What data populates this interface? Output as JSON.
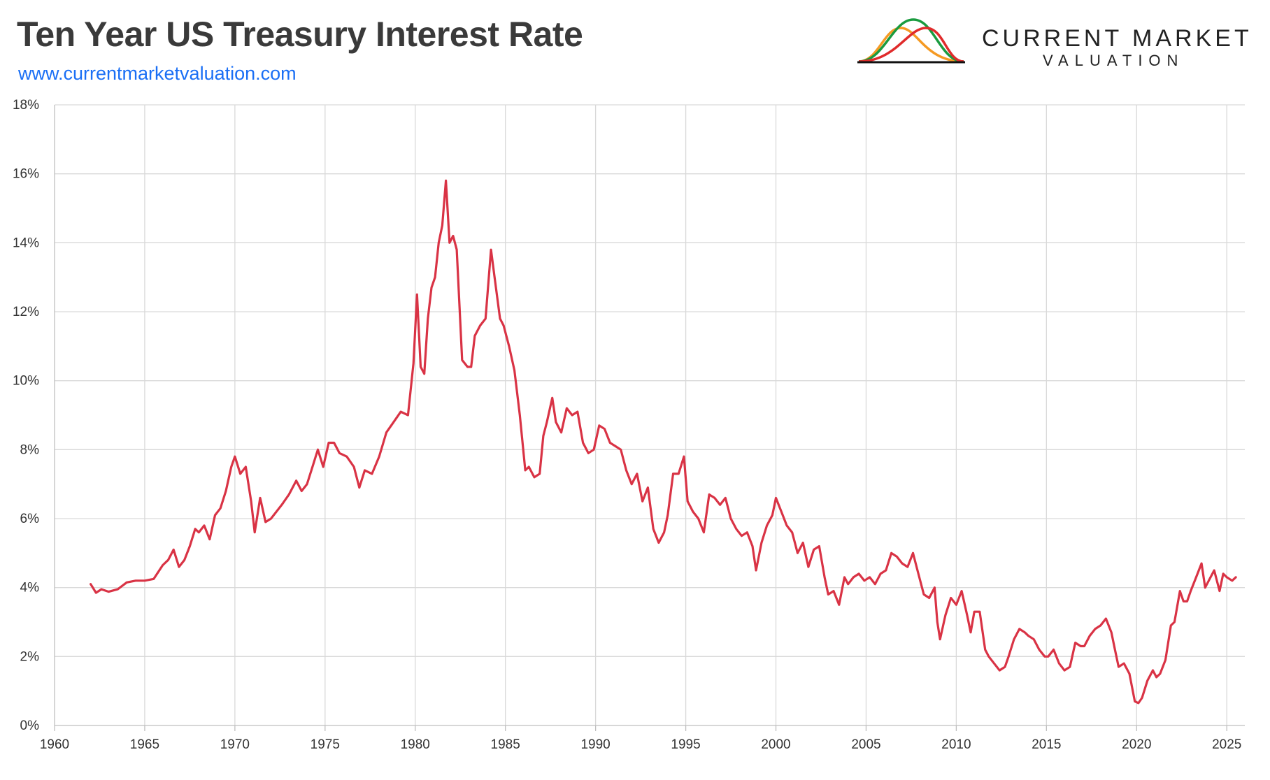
{
  "header": {
    "title": "Ten Year US Treasury Interest Rate",
    "url": "www.currentmarketvaluation.com"
  },
  "brand": {
    "name": "CURRENT MARKET",
    "sub": "VALUATION",
    "logo_icon": "bell-curves-logo",
    "logo_colors": [
      "#f59a23",
      "#1a9b3f",
      "#e02b2b",
      "#111111"
    ]
  },
  "chart_data": {
    "type": "line",
    "title": "",
    "xlabel": "",
    "ylabel": "",
    "xlim": [
      1960,
      2026
    ],
    "ylim": [
      0,
      18
    ],
    "x_ticks": [
      1960,
      1965,
      1970,
      1975,
      1980,
      1985,
      1990,
      1995,
      2000,
      2005,
      2010,
      2015,
      2020,
      2025
    ],
    "x_tick_labels": [
      "1960",
      "1965",
      "1970",
      "1975",
      "1980",
      "1985",
      "1990",
      "1995",
      "2000",
      "2005",
      "2010",
      "2015",
      "2020",
      "2025"
    ],
    "y_ticks": [
      0,
      2,
      4,
      6,
      8,
      10,
      12,
      14,
      16,
      18
    ],
    "y_tick_labels": [
      "0%",
      "2%",
      "4%",
      "6%",
      "8%",
      "10%",
      "12%",
      "14%",
      "16%",
      "18%"
    ],
    "grid": true,
    "legend": "none",
    "line_color": "#d93345",
    "series": [
      {
        "x": [
          1962.0,
          1962.3,
          1962.6,
          1963.0,
          1963.5,
          1964.0,
          1964.5,
          1965.0,
          1965.5,
          1966.0,
          1966.3,
          1966.6,
          1966.9,
          1967.2,
          1967.5,
          1967.8,
          1968.0,
          1968.3,
          1968.6,
          1968.9,
          1969.2,
          1969.5,
          1969.8,
          1970.0,
          1970.3,
          1970.6,
          1970.9,
          1971.1,
          1971.4,
          1971.7,
          1972.0,
          1972.3,
          1972.6,
          1973.0,
          1973.4,
          1973.7,
          1974.0,
          1974.3,
          1974.6,
          1974.9,
          1975.2,
          1975.5,
          1975.8,
          1976.2,
          1976.6,
          1976.9,
          1977.2,
          1977.6,
          1978.0,
          1978.4,
          1978.8,
          1979.2,
          1979.6,
          1979.9,
          1980.1,
          1980.3,
          1980.5,
          1980.7,
          1980.9,
          1981.1,
          1981.3,
          1981.5,
          1981.7,
          1981.9,
          1982.1,
          1982.3,
          1982.6,
          1982.9,
          1983.1,
          1983.3,
          1983.6,
          1983.9,
          1984.2,
          1984.4,
          1984.7,
          1984.9,
          1985.2,
          1985.5,
          1985.8,
          1986.1,
          1986.3,
          1986.6,
          1986.9,
          1987.1,
          1987.3,
          1987.6,
          1987.8,
          1988.1,
          1988.4,
          1988.7,
          1989.0,
          1989.3,
          1989.6,
          1989.9,
          1990.2,
          1990.5,
          1990.8,
          1991.1,
          1991.4,
          1991.7,
          1992.0,
          1992.3,
          1992.6,
          1992.9,
          1993.2,
          1993.5,
          1993.8,
          1994.0,
          1994.3,
          1994.6,
          1994.9,
          1995.1,
          1995.4,
          1995.7,
          1996.0,
          1996.3,
          1996.6,
          1996.9,
          1997.2,
          1997.5,
          1997.8,
          1998.1,
          1998.4,
          1998.7,
          1998.9,
          1999.2,
          1999.5,
          1999.8,
          2000.0,
          2000.3,
          2000.6,
          2000.9,
          2001.2,
          2001.5,
          2001.8,
          2002.1,
          2002.4,
          2002.7,
          2002.9,
          2003.2,
          2003.5,
          2003.8,
          2004.0,
          2004.3,
          2004.6,
          2004.9,
          2005.2,
          2005.5,
          2005.8,
          2006.1,
          2006.4,
          2006.7,
          2007.0,
          2007.3,
          2007.6,
          2007.9,
          2008.2,
          2008.5,
          2008.8,
          2008.95,
          2009.1,
          2009.4,
          2009.7,
          2010.0,
          2010.3,
          2010.6,
          2010.8,
          2011.0,
          2011.3,
          2011.6,
          2011.8,
          2012.1,
          2012.4,
          2012.7,
          2012.9,
          2013.2,
          2013.5,
          2013.8,
          2014.0,
          2014.3,
          2014.6,
          2014.9,
          2015.1,
          2015.4,
          2015.7,
          2016.0,
          2016.3,
          2016.6,
          2016.9,
          2017.1,
          2017.4,
          2017.7,
          2018.0,
          2018.3,
          2018.6,
          2018.8,
          2019.0,
          2019.3,
          2019.6,
          2019.9,
          2020.1,
          2020.3,
          2020.6,
          2020.9,
          2021.1,
          2021.3,
          2021.6,
          2021.9,
          2022.1,
          2022.4,
          2022.6,
          2022.8,
          2023.0,
          2023.3,
          2023.6,
          2023.8,
          2024.0,
          2024.3,
          2024.6,
          2024.8,
          2025.0,
          2025.3,
          2025.5
        ],
        "values": [
          4.1,
          3.85,
          3.95,
          3.88,
          3.95,
          4.15,
          4.2,
          4.2,
          4.25,
          4.65,
          4.8,
          5.1,
          4.6,
          4.8,
          5.2,
          5.7,
          5.6,
          5.8,
          5.4,
          6.1,
          6.3,
          6.8,
          7.5,
          7.8,
          7.3,
          7.5,
          6.5,
          5.6,
          6.6,
          5.9,
          6.0,
          6.2,
          6.4,
          6.7,
          7.1,
          6.8,
          7.0,
          7.5,
          8.0,
          7.5,
          8.2,
          8.2,
          7.9,
          7.8,
          7.5,
          6.9,
          7.4,
          7.3,
          7.8,
          8.5,
          8.8,
          9.1,
          9.0,
          10.5,
          12.5,
          10.4,
          10.2,
          11.8,
          12.7,
          13.0,
          14.0,
          14.5,
          15.8,
          14.0,
          14.2,
          13.8,
          10.6,
          10.4,
          10.4,
          11.3,
          11.6,
          11.8,
          13.8,
          13.0,
          11.8,
          11.6,
          11.0,
          10.3,
          9.0,
          7.4,
          7.5,
          7.2,
          7.3,
          8.4,
          8.8,
          9.5,
          8.8,
          8.5,
          9.2,
          9.0,
          9.1,
          8.2,
          7.9,
          8.0,
          8.7,
          8.6,
          8.2,
          8.1,
          8.0,
          7.4,
          7.0,
          7.3,
          6.5,
          6.9,
          5.7,
          5.3,
          5.6,
          6.1,
          7.3,
          7.3,
          7.8,
          6.5,
          6.2,
          6.0,
          5.6,
          6.7,
          6.6,
          6.4,
          6.6,
          6.0,
          5.7,
          5.5,
          5.6,
          5.2,
          4.5,
          5.3,
          5.8,
          6.1,
          6.6,
          6.2,
          5.8,
          5.6,
          5.0,
          5.3,
          4.6,
          5.1,
          5.2,
          4.3,
          3.8,
          3.9,
          3.5,
          4.3,
          4.1,
          4.3,
          4.4,
          4.2,
          4.3,
          4.1,
          4.4,
          4.5,
          5.0,
          4.9,
          4.7,
          4.6,
          5.0,
          4.4,
          3.8,
          3.7,
          4.0,
          3.0,
          2.5,
          3.2,
          3.7,
          3.5,
          3.9,
          3.2,
          2.7,
          3.3,
          3.3,
          2.2,
          2.0,
          1.8,
          1.6,
          1.7,
          2.0,
          2.5,
          2.8,
          2.7,
          2.6,
          2.5,
          2.2,
          2.0,
          2.0,
          2.2,
          1.8,
          1.6,
          1.7,
          2.4,
          2.3,
          2.3,
          2.6,
          2.8,
          2.9,
          3.1,
          2.7,
          2.2,
          1.7,
          1.8,
          1.5,
          0.7,
          0.65,
          0.8,
          1.3,
          1.6,
          1.4,
          1.5,
          1.9,
          2.9,
          3.0,
          3.9,
          3.6,
          3.6,
          3.9,
          4.3,
          4.7,
          4.0,
          4.2,
          4.5,
          3.9,
          4.4,
          4.3,
          4.2,
          4.3
        ]
      }
    ]
  }
}
